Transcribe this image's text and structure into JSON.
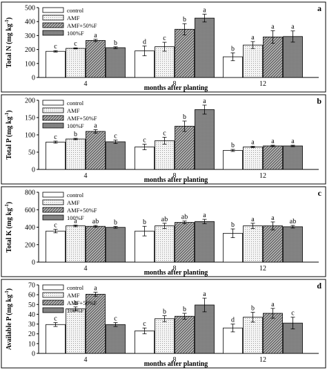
{
  "figure": {
    "legend": [
      "control",
      "AMF",
      "AMF+50%F",
      "100%F"
    ],
    "xlabel": "months after planting"
  },
  "chart_data": [
    {
      "type": "bar",
      "panel_letter": "a",
      "ylabel_main": "Total N (mg kg",
      "ylabel_sup": "-1",
      "ylabel_end": ")",
      "categories": [
        "4",
        "8",
        "12"
      ],
      "ylim": [
        0,
        500
      ],
      "yticks": [
        0,
        100,
        200,
        300,
        400,
        500
      ],
      "legend_position": "top-left",
      "grid": false,
      "series": [
        {
          "name": "control",
          "values": [
            187,
            190,
            148
          ],
          "errors": [
            5,
            35,
            28
          ],
          "letters": [
            "c",
            "d",
            "b"
          ]
        },
        {
          "name": "AMF",
          "values": [
            208,
            220,
            232
          ],
          "errors": [
            4,
            32,
            25
          ],
          "letters": [
            "c",
            "c",
            "a"
          ]
        },
        {
          "name": "AMF+50%F",
          "values": [
            265,
            345,
            290
          ],
          "errors": [
            8,
            40,
            45
          ],
          "letters": [
            "a",
            "b",
            "a"
          ]
        },
        {
          "name": "100%F",
          "values": [
            213,
            425,
            293
          ],
          "errors": [
            6,
            28,
            40
          ],
          "letters": [
            "b",
            "a",
            "a"
          ]
        }
      ]
    },
    {
      "type": "bar",
      "panel_letter": "b",
      "ylabel_main": "Total P (mg kg",
      "ylabel_sup": "-1",
      "ylabel_end": ")",
      "categories": [
        "4",
        "8",
        "12"
      ],
      "ylim": [
        0,
        200
      ],
      "yticks": [
        0,
        50,
        100,
        150,
        200
      ],
      "legend_position": "top-left",
      "grid": false,
      "series": [
        {
          "name": "control",
          "values": [
            79,
            65,
            55
          ],
          "errors": [
            3,
            8,
            3
          ],
          "letters": [
            "c",
            "c",
            "b"
          ]
        },
        {
          "name": "AMF",
          "values": [
            88,
            83,
            65
          ],
          "errors": [
            2,
            10,
            2
          ],
          "letters": [
            "b",
            "c",
            "a"
          ]
        },
        {
          "name": "AMF+50%F",
          "values": [
            110,
            125,
            68
          ],
          "errors": [
            5,
            15,
            2
          ],
          "letters": [
            "a",
            "b",
            "a"
          ]
        },
        {
          "name": "100%F",
          "values": [
            80,
            173,
            68
          ],
          "errors": [
            5,
            13,
            2
          ],
          "letters": [
            "c",
            "a",
            "a"
          ]
        }
      ]
    },
    {
      "type": "bar",
      "panel_letter": "c",
      "ylabel_main": "Total K (mg kg",
      "ylabel_sup": "-1",
      "ylabel_end": ")",
      "categories": [
        "4",
        "8",
        "12"
      ],
      "ylim": [
        0,
        800
      ],
      "yticks": [
        0,
        200,
        400,
        600,
        800
      ],
      "legend_position": "top-left",
      "grid": false,
      "series": [
        {
          "name": "control",
          "values": [
            355,
            355,
            330
          ],
          "errors": [
            20,
            55,
            50
          ],
          "letters": [
            "c",
            "b",
            "b"
          ]
        },
        {
          "name": "AMF",
          "values": [
            415,
            415,
            415
          ],
          "errors": [
            10,
            30,
            30
          ],
          "letters": [
            "a",
            "ab",
            "a"
          ]
        },
        {
          "name": "AMF+50%F",
          "values": [
            410,
            455,
            415
          ],
          "errors": [
            10,
            15,
            45
          ],
          "letters": [
            "ab",
            "ab",
            "a"
          ]
        },
        {
          "name": "100%F",
          "values": [
            398,
            465,
            405
          ],
          "errors": [
            10,
            25,
            15
          ],
          "letters": [
            "b",
            "a",
            "ab"
          ]
        }
      ]
    },
    {
      "type": "bar",
      "panel_letter": "d",
      "ylabel_main": "Available P (mg kg",
      "ylabel_sup": "-1",
      "ylabel_end": ")",
      "categories": [
        "4",
        "8",
        "12"
      ],
      "ylim": [
        0,
        70
      ],
      "yticks": [
        0,
        10,
        20,
        30,
        40,
        50,
        60,
        70
      ],
      "legend_position": "top-left",
      "grid": false,
      "series": [
        {
          "name": "control",
          "values": [
            29.5,
            23,
            26
          ],
          "errors": [
            2,
            3,
            4
          ],
          "letters": [
            "c",
            "c",
            "d"
          ]
        },
        {
          "name": "AMF",
          "values": [
            45.5,
            35.5,
            37
          ],
          "errors": [
            2,
            3,
            5
          ],
          "letters": [
            "b",
            "b",
            "b"
          ]
        },
        {
          "name": "AMF+50%F",
          "values": [
            60.5,
            38,
            41
          ],
          "errors": [
            2,
            3,
            5
          ],
          "letters": [
            "a",
            "b",
            "a"
          ]
        },
        {
          "name": "100%F",
          "values": [
            29.5,
            49.5,
            31
          ],
          "errors": [
            2,
            7,
            6
          ],
          "letters": [
            "c",
            "a",
            "c"
          ]
        }
      ]
    }
  ]
}
